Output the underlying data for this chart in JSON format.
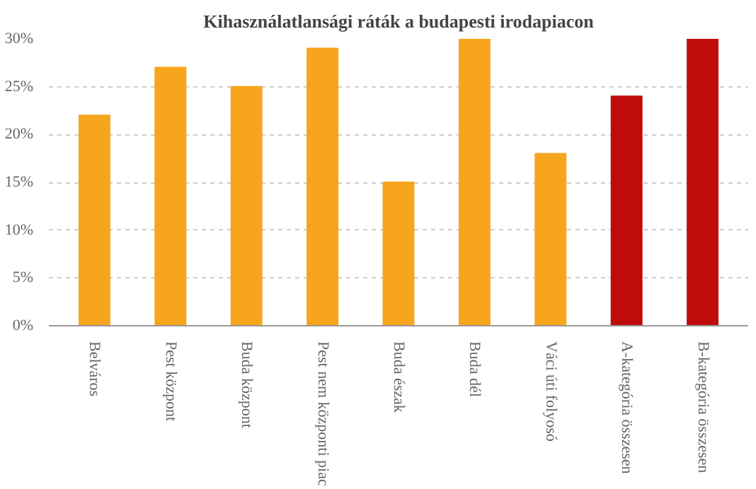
{
  "chart_data": {
    "type": "bar",
    "title": "Kihasználatlansági ráták a budapesti irodapiacon",
    "categories": [
      "Belváros",
      "Pest központ",
      "Buda központ",
      "Pest nem központi piac",
      "Buda észak",
      "Buda dél",
      "Váci úti folyosó",
      "A-kategória összesen",
      "B-kategória összesen"
    ],
    "values": [
      22,
      27,
      25,
      29,
      15,
      30,
      18,
      24,
      30
    ],
    "colors": [
      "#f7a51c",
      "#f7a51c",
      "#f7a51c",
      "#f7a51c",
      "#f7a51c",
      "#f7a51c",
      "#f7a51c",
      "#c00b0b",
      "#c00b0b"
    ],
    "ylim": [
      0,
      30
    ],
    "yticks": [
      {
        "value": 0,
        "label": "0%"
      },
      {
        "value": 5,
        "label": "5%"
      },
      {
        "value": 10,
        "label": "10%"
      },
      {
        "value": 15,
        "label": "15%"
      },
      {
        "value": 20,
        "label": "20%"
      },
      {
        "value": 25,
        "label": "25%"
      },
      {
        "value": 30,
        "label": "30%"
      }
    ],
    "grid": "y"
  }
}
